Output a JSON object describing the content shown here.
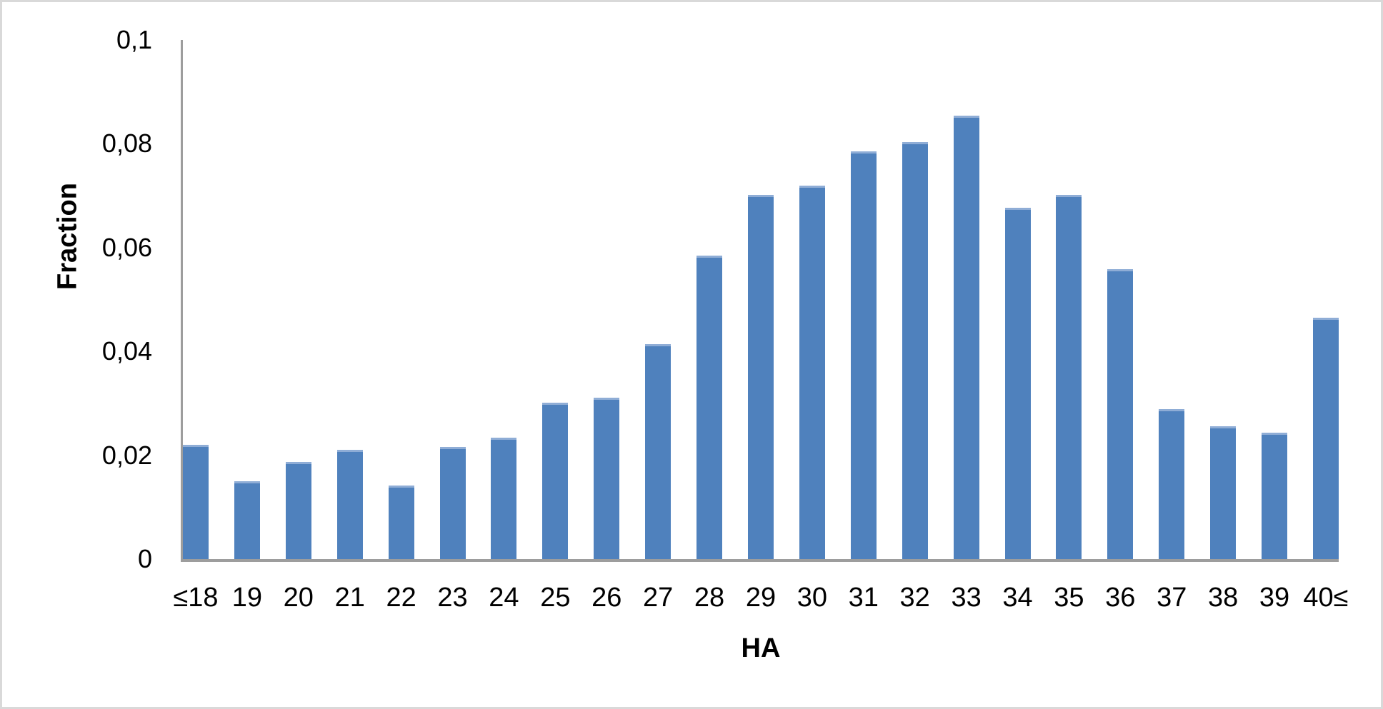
{
  "chart_data": {
    "type": "bar",
    "title": "",
    "xlabel": "HA",
    "ylabel": "Fraction",
    "categories": [
      "≤18",
      "19",
      "20",
      "21",
      "22",
      "23",
      "24",
      "25",
      "26",
      "27",
      "28",
      "29",
      "30",
      "31",
      "32",
      "33",
      "34",
      "35",
      "36",
      "37",
      "38",
      "39",
      "40≤"
    ],
    "values": [
      0.022,
      0.015,
      0.0187,
      0.021,
      0.0142,
      0.0216,
      0.0234,
      0.0301,
      0.0311,
      0.0414,
      0.0585,
      0.0701,
      0.0719,
      0.0785,
      0.0803,
      0.0854,
      0.0677,
      0.0701,
      0.0558,
      0.0289,
      0.0256,
      0.0243,
      0.0465
    ],
    "ylim": [
      0,
      0.1
    ],
    "y_ticks": [
      {
        "label": "0",
        "value": 0
      },
      {
        "label": "0,02",
        "value": 0.02
      },
      {
        "label": "0,04",
        "value": 0.04
      },
      {
        "label": "0,06",
        "value": 0.06
      },
      {
        "label": "0,08",
        "value": 0.08
      },
      {
        "label": "0,1",
        "value": 0.1
      }
    ],
    "decimal_separator": ",",
    "grid": false,
    "legend": "none",
    "colors": {
      "bar": "#4F81BD",
      "bar_top_edge": "#8FADD6",
      "axis": "#9D9D9D",
      "text": "#000000",
      "frame_border": "#D9D9D9",
      "background": "#FFFFFF"
    }
  }
}
